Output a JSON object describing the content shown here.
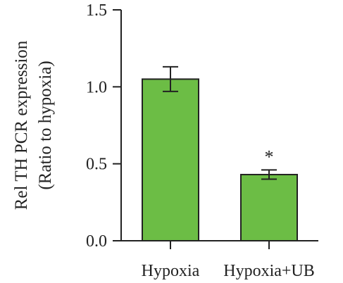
{
  "chart_data": {
    "type": "bar",
    "title": "",
    "xlabel": "",
    "ylabel": "Rel TH PCR expression",
    "ylabel_sub": "(Ratio to hypoxia)",
    "categories": [
      "Hypoxia",
      "Hypoxia+UB"
    ],
    "values": [
      1.05,
      0.43
    ],
    "errors": [
      0.08,
      0.03
    ],
    "significance": [
      "",
      "*"
    ],
    "ylim": [
      0,
      1.5
    ],
    "yticks": [
      0.0,
      0.5,
      1.0,
      1.5
    ],
    "ytick_labels": [
      "0.0",
      "0.5",
      "1.0",
      "1.5"
    ],
    "bar_color": "#6cbd45",
    "edge_color": "#222222",
    "grid": false,
    "legend": "none"
  }
}
